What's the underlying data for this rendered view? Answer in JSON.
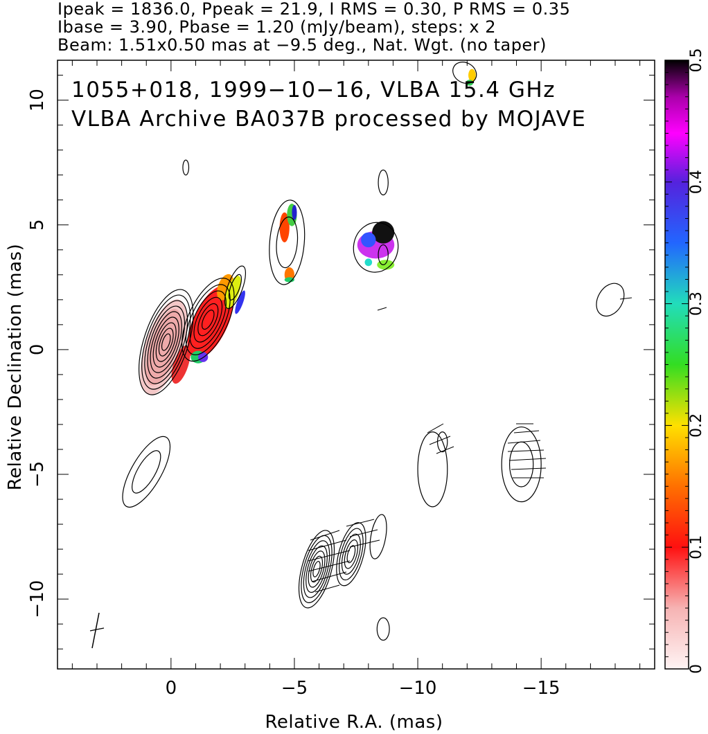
{
  "header": {
    "line1": "Ipeak = 1836.0, Ppeak = 21.9, I RMS = 0.30, P RMS = 0.35",
    "line2": "Ibase = 3.90, Pbase = 1.20 (mJy/beam), steps: x 2",
    "line3": "Beam: 1.51x0.50 mas at −9.5 deg., Nat. Wgt. (no taper)"
  },
  "chart_data": {
    "type": "heatmap",
    "title_line1": "1055+018, 1999−10−16, VLBA 15.4 GHz",
    "title_line2": "VLBA Archive BA037B processed by MOJAVE",
    "xlabel": "Relative R.A. (mas)",
    "ylabel": "Relative Declination (mas)",
    "xlim": [
      4.6,
      -19.6
    ],
    "ylim": [
      -12.8,
      11.6
    ],
    "xticks": [
      0,
      -5,
      -10,
      -15
    ],
    "xtick_labels": [
      "0",
      "−5",
      "−10",
      "−15"
    ],
    "yticks": [
      10,
      5,
      0,
      -5,
      -10
    ],
    "ytick_labels": [
      "10",
      "5",
      "0",
      "−5",
      "−10"
    ],
    "colorbar": {
      "range": [
        0,
        0.5
      ],
      "ticks": [
        0,
        0.1,
        0.2,
        0.3,
        0.4,
        0.5
      ],
      "tick_labels": [
        "0",
        "0.1",
        "0.2",
        "0.3",
        "0.4",
        "0.5"
      ]
    },
    "contour_groups": [
      {
        "x": 0.2,
        "y": 0.3,
        "rx": 0.9,
        "ry": 2.2,
        "rot": 18,
        "levels": 9
      },
      {
        "x": -1.5,
        "y": 1.2,
        "rx": 0.8,
        "ry": 1.8,
        "rot": 25,
        "levels": 6
      },
      {
        "x": -2.6,
        "y": 2.5,
        "rx": 0.3,
        "ry": 0.9,
        "rot": 20,
        "levels": 2
      },
      {
        "x": -4.7,
        "y": 4.3,
        "rx": 0.7,
        "ry": 1.7,
        "rot": 5,
        "levels": 2
      },
      {
        "x": -8.3,
        "y": 4.1,
        "rx": 0.9,
        "ry": 1.0,
        "rot": 10,
        "levels": 1
      },
      {
        "x": -8.6,
        "y": 3.8,
        "rx": 0.2,
        "ry": 0.4,
        "rot": 0,
        "levels": 1
      },
      {
        "x": -8.6,
        "y": 6.7,
        "rx": 0.2,
        "ry": 0.5,
        "rot": 0,
        "levels": 1
      },
      {
        "x": 1.0,
        "y": -4.9,
        "rx": 0.6,
        "ry": 1.6,
        "rot": 30,
        "levels": 2
      },
      {
        "x": -5.9,
        "y": -8.8,
        "rx": 0.6,
        "ry": 1.6,
        "rot": 15,
        "levels": 7
      },
      {
        "x": -7.3,
        "y": -8.2,
        "rx": 0.5,
        "ry": 1.3,
        "rot": 15,
        "levels": 5
      },
      {
        "x": -8.4,
        "y": -7.5,
        "rx": 0.3,
        "ry": 0.9,
        "rot": 10,
        "levels": 1
      },
      {
        "x": -10.6,
        "y": -4.8,
        "rx": 0.6,
        "ry": 1.5,
        "rot": 0,
        "levels": 1
      },
      {
        "x": -11.0,
        "y": -3.7,
        "rx": 0.2,
        "ry": 0.4,
        "rot": 0,
        "levels": 1
      },
      {
        "x": -14.2,
        "y": -4.6,
        "rx": 0.8,
        "ry": 1.5,
        "rot": 0,
        "levels": 2
      },
      {
        "x": -17.8,
        "y": 2.0,
        "rx": 0.5,
        "ry": 0.7,
        "rot": 30,
        "levels": 1
      },
      {
        "x": -8.6,
        "y": -11.2,
        "rx": 0.25,
        "ry": 0.45,
        "rot": 0,
        "levels": 1
      },
      {
        "x": -11.9,
        "y": 11.1,
        "rx": 0.5,
        "ry": 0.4,
        "rot": 30,
        "levels": 1
      },
      {
        "x": -0.6,
        "y": 7.3,
        "rx": 0.12,
        "ry": 0.3,
        "rot": 0,
        "levels": 1
      }
    ],
    "color_patches": [
      {
        "x": 0.3,
        "y": 0.1,
        "rx": 0.75,
        "ry": 2.0,
        "rot": 18,
        "color": "#f4c8c8"
      },
      {
        "x": 0.3,
        "y": 0.1,
        "rx": 0.55,
        "ry": 1.6,
        "rot": 18,
        "color": "#eeaaaa"
      },
      {
        "x": -0.4,
        "y": -0.6,
        "rx": 0.3,
        "ry": 0.8,
        "rot": 18,
        "color": "#ee3333"
      },
      {
        "x": -1.6,
        "y": 1.1,
        "rx": 0.7,
        "ry": 1.6,
        "rot": 25,
        "color": "#ff2020"
      },
      {
        "x": -1.1,
        "y": -0.3,
        "rx": 0.3,
        "ry": 0.25,
        "rot": 0,
        "color": "#22cc66"
      },
      {
        "x": -1.3,
        "y": -0.3,
        "rx": 0.2,
        "ry": 0.2,
        "rot": 0,
        "color": "#6633ee"
      },
      {
        "x": -2.2,
        "y": 2.5,
        "rx": 0.3,
        "ry": 0.55,
        "rot": 20,
        "color": "#ff9900"
      },
      {
        "x": -2.5,
        "y": 2.3,
        "rx": 0.25,
        "ry": 0.7,
        "rot": 20,
        "color": "#ddee11"
      },
      {
        "x": -2.8,
        "y": 1.9,
        "rx": 0.12,
        "ry": 0.5,
        "rot": 20,
        "color": "#3333ee"
      },
      {
        "x": -4.6,
        "y": 4.9,
        "rx": 0.2,
        "ry": 0.6,
        "rot": 0,
        "color": "#ff4400"
      },
      {
        "x": -4.9,
        "y": 5.4,
        "rx": 0.2,
        "ry": 0.45,
        "rot": 0,
        "color": "#44cc44"
      },
      {
        "x": -5.0,
        "y": 5.5,
        "rx": 0.1,
        "ry": 0.3,
        "rot": 0,
        "color": "#2222cc"
      },
      {
        "x": -4.8,
        "y": 3.0,
        "rx": 0.2,
        "ry": 0.3,
        "rot": 0,
        "color": "#ff7700"
      },
      {
        "x": -4.8,
        "y": 2.8,
        "rx": 0.2,
        "ry": 0.1,
        "rot": 0,
        "color": "#22cc66"
      },
      {
        "x": -8.3,
        "y": 4.2,
        "rx": 0.75,
        "ry": 0.55,
        "rot": 0,
        "color": "#cc33ee"
      },
      {
        "x": -8.6,
        "y": 4.7,
        "rx": 0.45,
        "ry": 0.45,
        "rot": 0,
        "color": "#111111"
      },
      {
        "x": -8.0,
        "y": 4.4,
        "rx": 0.3,
        "ry": 0.3,
        "rot": 0,
        "color": "#3355ff"
      },
      {
        "x": -8.7,
        "y": 3.4,
        "rx": 0.35,
        "ry": 0.2,
        "rot": 0,
        "color": "#88ee33"
      },
      {
        "x": -8.0,
        "y": 3.5,
        "rx": 0.15,
        "ry": 0.15,
        "rot": 0,
        "color": "#22ddcc"
      },
      {
        "x": -12.2,
        "y": 11.0,
        "rx": 0.15,
        "ry": 0.25,
        "rot": 0,
        "color": "#ffcc00"
      },
      {
        "x": -12.1,
        "y": 10.7,
        "rx": 0.15,
        "ry": 0.12,
        "rot": 0,
        "color": "#33cc55"
      }
    ]
  }
}
